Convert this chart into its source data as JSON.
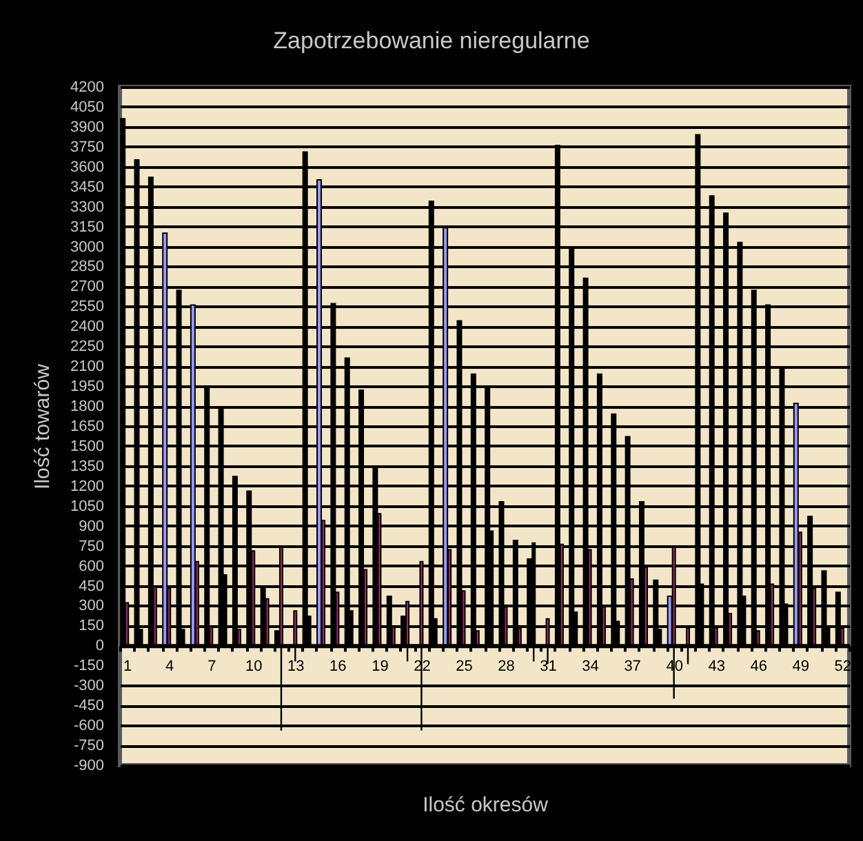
{
  "chart_data": {
    "type": "bar",
    "title": "Zapotrzebowanie nieregularne",
    "xlabel": "Ilość okresów",
    "ylabel": "Ilość towarów",
    "categories": [
      "1",
      null,
      null,
      "4",
      null,
      null,
      "7",
      null,
      null,
      "10",
      null,
      null,
      "13",
      null,
      null,
      "16",
      null,
      null,
      "19",
      null,
      null,
      "22",
      null,
      null,
      "25",
      null,
      null,
      "28",
      null,
      null,
      "31",
      null,
      null,
      "34",
      null,
      null,
      "37",
      null,
      null,
      "40",
      null,
      null,
      "43",
      null,
      null,
      "46",
      null,
      null,
      "49",
      null,
      null,
      "52"
    ],
    "series": [
      {
        "values": [
          3960,
          3650,
          3520,
          3100,
          2670,
          2560,
          1940,
          1780,
          1270,
          1160,
          440,
          110,
          null,
          3710,
          3500,
          2570,
          2160,
          1920,
          1340,
          370,
          220,
          null,
          3340,
          3140,
          2440,
          2040,
          1940,
          1080,
          790,
          650,
          null,
          3760,
          2990,
          2760,
          2040,
          1740,
          1570,
          1080,
          490,
          370,
          null,
          3840,
          3380,
          3250,
          3030,
          2670,
          2560,
          2090,
          1820,
          970,
          560,
          400
        ],
        "colors": [
          "#000000",
          "#000000",
          "#000000",
          "#9999ff",
          "#000000",
          "#9999ff",
          "#000000",
          "#000000",
          "#000000",
          "#000000",
          "#000000",
          "#000000",
          null,
          "#000000",
          "#9999ff",
          "#000000",
          "#000000",
          "#000000",
          "#000000",
          "#000000",
          "#000000",
          null,
          "#000000",
          "#9999ff",
          "#000000",
          "#000000",
          "#000000",
          "#000000",
          "#000000",
          "#000000",
          null,
          "#000000",
          "#000000",
          "#000000",
          "#000000",
          "#000000",
          "#000000",
          "#000000",
          "#000000",
          "#9999ff",
          null,
          "#000000",
          "#000000",
          "#000000",
          "#000000",
          "#000000",
          "#000000",
          "#000000",
          "#9999ff",
          "#000000",
          "#000000",
          "#000000"
        ]
      },
      {
        "values": [
          320,
          120,
          440,
          430,
          120,
          630,
          140,
          530,
          120,
          710,
          350,
          740,
          260,
          220,
          940,
          400,
          260,
          570,
          990,
          140,
          330,
          630,
          200,
          720,
          410,
          110,
          860,
          290,
          130,
          770,
          200,
          760,
          250,
          720,
          290,
          180,
          500,
          590,
          120,
          740,
          130,
          460,
          130,
          240,
          370,
          110,
          460,
          310,
          850,
          430,
          130,
          130
        ],
        "colors": [
          "#993366",
          "#000000",
          "#993366",
          "#993366",
          "#000000",
          "#993366",
          "#993366",
          "#000000",
          "#993366",
          "#993366",
          "#993366",
          "#993366",
          "#993366",
          "#000000",
          "#993366",
          "#993366",
          "#000000",
          "#993366",
          "#993366",
          "#993366",
          "#993366",
          "#993366",
          "#000000",
          "#993366",
          "#993366",
          "#993366",
          "#000000",
          "#993366",
          "#993366",
          "#000000",
          "#993366",
          "#993366",
          "#000000",
          "#993366",
          "#993366",
          "#000000",
          "#993366",
          "#993366",
          "#000000",
          "#993366",
          "#993366",
          "#000000",
          "#993366",
          "#993366",
          "#000000",
          "#993366",
          "#993366",
          "#000000",
          "#993366",
          "#993366",
          "#000000",
          "#993366"
        ]
      },
      {
        "color": "#000000",
        "values": [
          null,
          null,
          null,
          null,
          null,
          null,
          null,
          null,
          null,
          null,
          null,
          -640,
          -120,
          null,
          null,
          null,
          null,
          null,
          null,
          null,
          -120,
          -640,
          null,
          null,
          null,
          null,
          null,
          null,
          null,
          -120,
          -140,
          null,
          null,
          null,
          null,
          null,
          null,
          null,
          null,
          -400,
          -140,
          null,
          null,
          null,
          null,
          null,
          null,
          null,
          null,
          null,
          null,
          null
        ]
      }
    ],
    "ylim": [
      -900,
      4200
    ],
    "yticks": [
      -900,
      -750,
      -600,
      -450,
      -300,
      -150,
      0,
      150,
      300,
      450,
      600,
      750,
      900,
      1050,
      1200,
      1350,
      1500,
      1650,
      1800,
      1950,
      2100,
      2250,
      2400,
      2550,
      2700,
      2850,
      3000,
      3150,
      3300,
      3450,
      3600,
      3750,
      3900,
      4050,
      4200
    ],
    "grid": "y"
  }
}
